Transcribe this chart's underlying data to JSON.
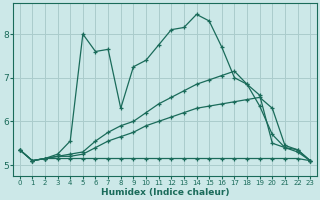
{
  "xlabel": "Humidex (Indice chaleur)",
  "background_color": "#cce8e8",
  "grid_color": "#aacccc",
  "line_color": "#1a6b5a",
  "xlim": [
    -0.5,
    23.5
  ],
  "ylim": [
    4.75,
    8.7
  ],
  "yticks": [
    5,
    6,
    7,
    8
  ],
  "xticks": [
    0,
    1,
    2,
    3,
    4,
    5,
    6,
    7,
    8,
    9,
    10,
    11,
    12,
    13,
    14,
    15,
    16,
    17,
    18,
    19,
    20,
    21,
    22,
    23
  ],
  "lines": [
    {
      "x": [
        0,
        1,
        2,
        3,
        4,
        5,
        6,
        7,
        8,
        9,
        10,
        11,
        12,
        13,
        14,
        15,
        16,
        17,
        18,
        19,
        20,
        21,
        22,
        23
      ],
      "y": [
        5.35,
        5.1,
        5.15,
        5.15,
        5.15,
        5.15,
        5.15,
        5.15,
        5.15,
        5.15,
        5.15,
        5.15,
        5.15,
        5.15,
        5.15,
        5.15,
        5.15,
        5.15,
        5.15,
        5.15,
        5.15,
        5.15,
        5.15,
        5.1
      ],
      "marker": true
    },
    {
      "x": [
        0,
        1,
        2,
        3,
        4,
        5,
        6,
        7,
        8,
        9,
        10,
        11,
        12,
        13,
        14,
        15,
        16,
        17,
        18,
        19,
        20,
        21,
        22,
        23
      ],
      "y": [
        5.35,
        5.1,
        5.15,
        5.2,
        5.2,
        5.25,
        5.4,
        5.55,
        5.65,
        5.75,
        5.9,
        6.0,
        6.1,
        6.2,
        6.3,
        6.35,
        6.4,
        6.45,
        6.5,
        6.55,
        6.3,
        5.45,
        5.35,
        5.1
      ],
      "marker": true
    },
    {
      "x": [
        0,
        1,
        2,
        3,
        4,
        5,
        6,
        7,
        8,
        9,
        10,
        11,
        12,
        13,
        14,
        15,
        16,
        17,
        18,
        19,
        20,
        21,
        22,
        23
      ],
      "y": [
        5.35,
        5.1,
        5.15,
        5.2,
        5.25,
        5.3,
        5.55,
        5.75,
        5.9,
        6.0,
        6.2,
        6.4,
        6.55,
        6.7,
        6.85,
        6.95,
        7.05,
        7.15,
        6.85,
        6.6,
        5.5,
        5.4,
        5.3,
        5.1
      ],
      "marker": true
    },
    {
      "x": [
        0,
        1,
        2,
        3,
        4,
        5,
        6,
        7,
        8,
        9,
        10,
        11,
        12,
        13,
        14,
        15,
        16,
        17,
        18,
        19,
        20,
        21,
        22,
        23
      ],
      "y": [
        5.35,
        5.1,
        5.15,
        5.25,
        5.55,
        8.0,
        7.6,
        7.65,
        6.3,
        7.25,
        7.4,
        7.75,
        8.1,
        8.15,
        8.45,
        8.3,
        7.7,
        7.0,
        6.85,
        6.35,
        5.7,
        5.4,
        5.35,
        5.1
      ],
      "marker": true
    }
  ]
}
